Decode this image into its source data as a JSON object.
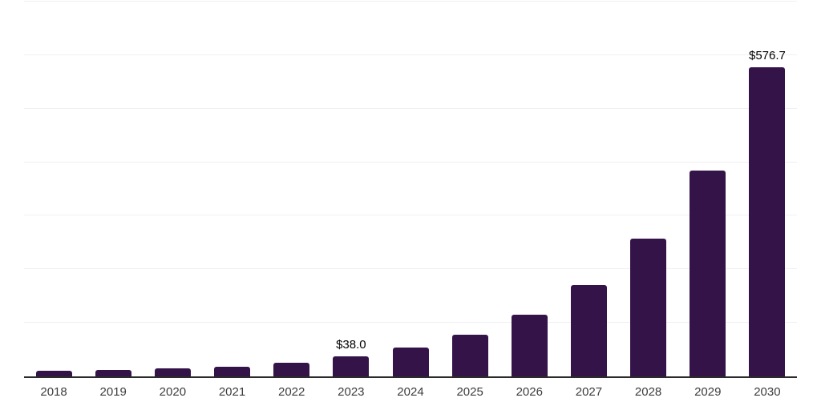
{
  "chart_data": {
    "type": "bar",
    "title": "",
    "xlabel": "",
    "ylabel": "",
    "categories": [
      "2018",
      "2019",
      "2020",
      "2021",
      "2022",
      "2023",
      "2024",
      "2025",
      "2026",
      "2027",
      "2028",
      "2029",
      "2030"
    ],
    "values": [
      10.9,
      11.5,
      14.5,
      17.5,
      25.0,
      38.0,
      53.4,
      78.2,
      115.5,
      171.0,
      256.7,
      383.7,
      576.7
    ],
    "value_labels": [
      "",
      "",
      "",
      "",
      "",
      "$38.0",
      "",
      "",
      "",
      "",
      "",
      "",
      "$576.7"
    ],
    "ylim": [
      0,
      700
    ],
    "gridline_step": 100,
    "grid": true,
    "legend": false,
    "y_axis_labels_visible": false,
    "colors": {
      "bar": "#341349",
      "axis": "#2b2b2b",
      "gridline": "#f0f0f2",
      "tick_label": "#3c3c3c",
      "value_label": "#000000",
      "background": "#ffffff"
    }
  }
}
